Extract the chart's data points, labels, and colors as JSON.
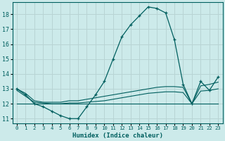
{
  "xlabel": "Humidex (Indice chaleur)",
  "bg_color": "#cceaea",
  "line_color": "#005f5f",
  "grid_color": "#b8d4d4",
  "xlim": [
    -0.5,
    23.5
  ],
  "ylim": [
    10.7,
    18.8
  ],
  "yticks": [
    11,
    12,
    13,
    14,
    15,
    16,
    17,
    18
  ],
  "xticks": [
    0,
    1,
    2,
    3,
    4,
    5,
    6,
    7,
    8,
    9,
    10,
    11,
    12,
    13,
    14,
    15,
    16,
    17,
    18,
    19,
    20,
    21,
    22,
    23
  ],
  "main_x": [
    0,
    1,
    2,
    3,
    4,
    5,
    6,
    7,
    8,
    9,
    10,
    11,
    12,
    13,
    14,
    15,
    16,
    17,
    18,
    19,
    20,
    21,
    22,
    23
  ],
  "main_y": [
    13.0,
    12.6,
    12.0,
    11.8,
    11.5,
    11.2,
    11.0,
    11.0,
    11.8,
    12.6,
    13.5,
    15.0,
    16.5,
    17.3,
    17.9,
    18.5,
    18.4,
    18.1,
    16.3,
    13.3,
    12.0,
    13.5,
    12.9,
    13.8
  ],
  "line2_x": [
    0,
    1,
    2,
    3,
    4,
    5,
    6,
    7,
    8,
    9,
    10,
    11,
    12,
    13,
    14,
    15,
    16,
    17,
    18,
    19,
    20,
    21,
    22,
    23
  ],
  "line2_y": [
    13.0,
    12.7,
    12.2,
    12.1,
    12.1,
    12.1,
    12.2,
    12.2,
    12.3,
    12.4,
    12.5,
    12.6,
    12.7,
    12.8,
    12.9,
    13.0,
    13.1,
    13.15,
    13.15,
    13.1,
    12.0,
    13.2,
    13.3,
    13.45
  ],
  "line3_x": [
    0,
    1,
    2,
    3,
    4,
    5,
    6,
    7,
    8,
    9,
    10,
    11,
    12,
    13,
    14,
    15,
    16,
    17,
    18,
    19,
    20,
    21,
    22,
    23
  ],
  "line3_y": [
    12.9,
    12.5,
    12.1,
    12.05,
    12.0,
    12.0,
    12.05,
    12.05,
    12.1,
    12.15,
    12.2,
    12.3,
    12.4,
    12.5,
    12.6,
    12.7,
    12.75,
    12.8,
    12.8,
    12.75,
    12.0,
    12.85,
    12.9,
    13.0
  ],
  "line4_x": [
    0,
    19,
    20,
    23
  ],
  "line4_y": [
    12.0,
    12.0,
    12.0,
    12.0
  ]
}
